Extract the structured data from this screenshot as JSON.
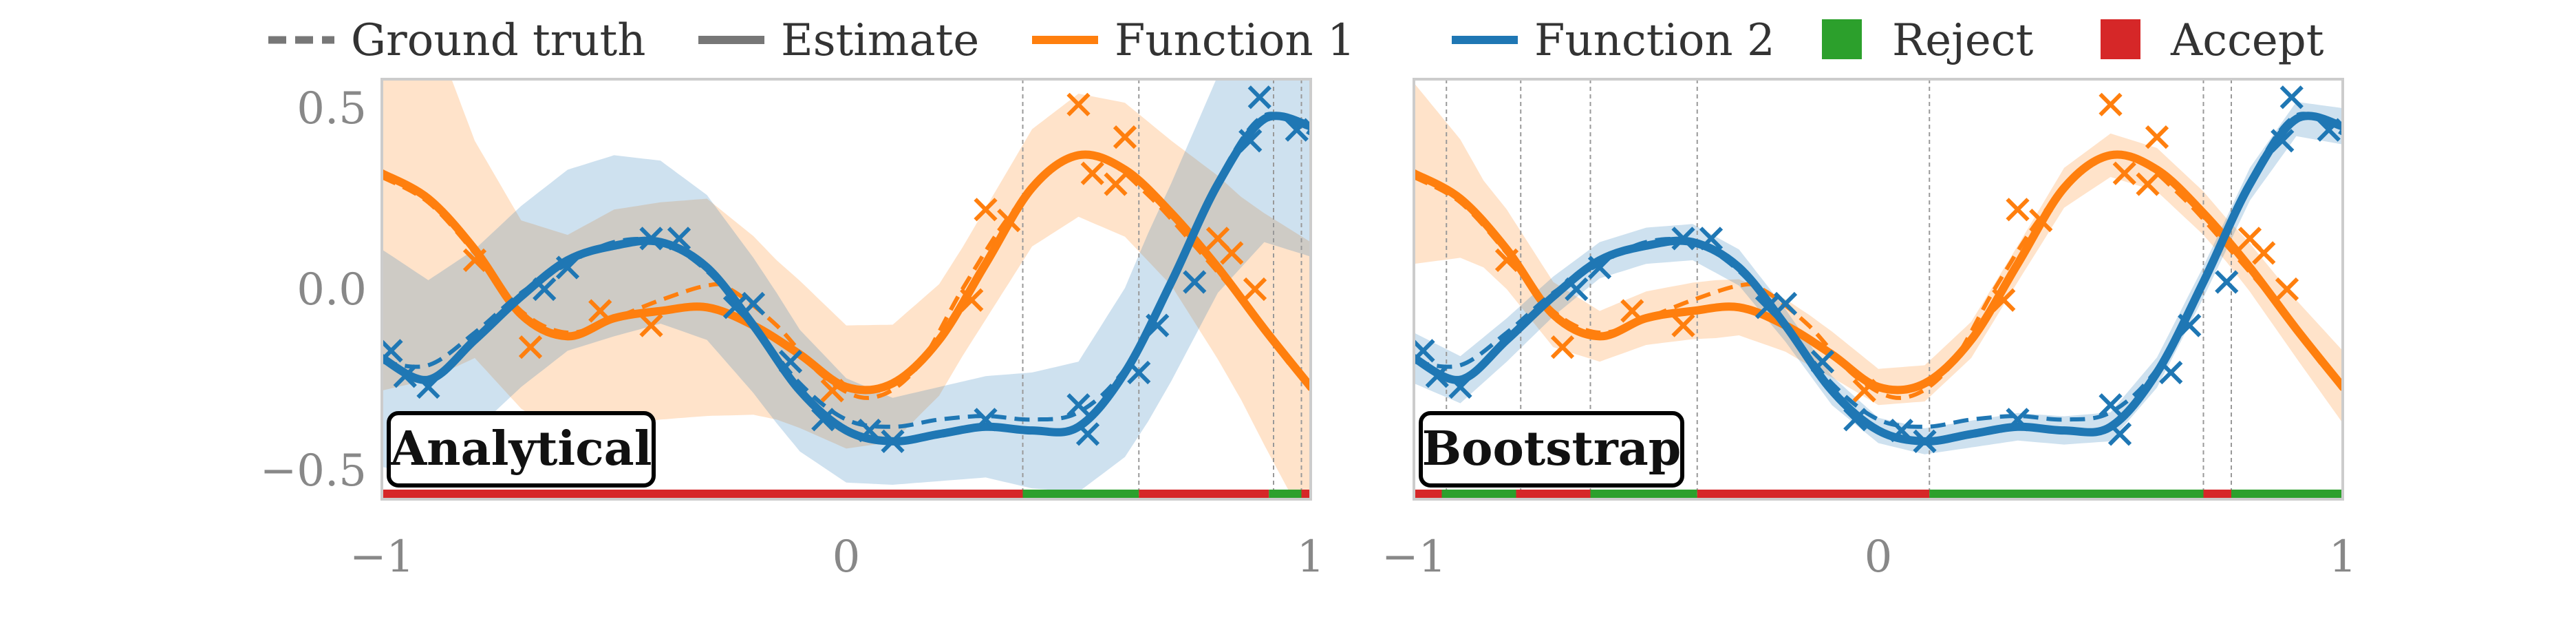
{
  "colors": {
    "function_1": "#ff7f0e",
    "function_2": "#1f77b4",
    "reject": "#2ca02c",
    "accept": "#d62728",
    "truth": "#777777",
    "axes": "#cccccc",
    "tick_text": "#888888"
  },
  "legend": {
    "items": [
      {
        "label": "Ground truth",
        "kind": "dashed-line",
        "color": "#777777"
      },
      {
        "label": "Estimate",
        "kind": "solid-line",
        "color": "#777777"
      },
      {
        "label": "Function 1",
        "kind": "solid-line",
        "color": "#ff7f0e"
      },
      {
        "label": "Function 2",
        "kind": "solid-line",
        "color": "#1f77b4"
      },
      {
        "label": "Reject",
        "kind": "square",
        "color": "#2ca02c"
      },
      {
        "label": "Accept",
        "kind": "square",
        "color": "#d62728"
      }
    ]
  },
  "chart_data": [
    {
      "type": "line",
      "panel_label": "Analytical",
      "xlim": [
        -1,
        1
      ],
      "ylim": [
        -0.58,
        0.58
      ],
      "x_ticks": [
        {
          "value": -1,
          "label": "−1"
        },
        {
          "value": 0,
          "label": "0"
        },
        {
          "value": 1,
          "label": "1"
        }
      ],
      "y_ticks": [
        {
          "value": 0.5,
          "label": "0.5"
        },
        {
          "value": 0.0,
          "label": "0.0"
        },
        {
          "value": -0.5,
          "label": "−0.5"
        }
      ],
      "grid": false,
      "band_width": {
        "f1": [
          [
            -1.0,
            0.6
          ],
          [
            -0.9,
            0.5
          ],
          [
            -0.8,
            0.3
          ],
          [
            -0.7,
            0.26
          ],
          [
            -0.5,
            0.3
          ],
          [
            -0.3,
            0.3
          ],
          [
            -0.15,
            0.22
          ],
          [
            0.0,
            0.17
          ],
          [
            0.25,
            0.15
          ],
          [
            0.5,
            0.17
          ],
          [
            0.7,
            0.2
          ],
          [
            0.85,
            0.28
          ],
          [
            1.0,
            0.4
          ]
        ],
        "f2": [
          [
            -1.0,
            0.3
          ],
          [
            -0.8,
            0.25
          ],
          [
            -0.5,
            0.25
          ],
          [
            -0.3,
            0.2
          ],
          [
            -0.15,
            0.18
          ],
          [
            0.1,
            0.12
          ],
          [
            0.3,
            0.14
          ],
          [
            0.5,
            0.18
          ],
          [
            0.65,
            0.26
          ],
          [
            0.8,
            0.3
          ],
          [
            0.9,
            0.34
          ],
          [
            1.0,
            0.36
          ]
        ]
      },
      "boundaries": [
        0.38,
        0.63,
        0.92,
        0.98
      ],
      "decision_strip": [
        {
          "from": -1.0,
          "to": 0.38,
          "decision": "Accept"
        },
        {
          "from": 0.38,
          "to": 0.63,
          "decision": "Reject"
        },
        {
          "from": 0.63,
          "to": 0.91,
          "decision": "Accept"
        },
        {
          "from": 0.91,
          "to": 0.98,
          "decision": "Reject"
        },
        {
          "from": 0.98,
          "to": 1.0,
          "decision": "Accept"
        }
      ]
    },
    {
      "type": "line",
      "panel_label": "Bootstrap",
      "xlim": [
        -1,
        1
      ],
      "ylim": [
        -0.58,
        0.58
      ],
      "x_ticks": [
        {
          "value": -1,
          "label": "−1"
        },
        {
          "value": 0,
          "label": "0"
        },
        {
          "value": 1,
          "label": "1"
        }
      ],
      "y_ticks": [],
      "grid": false,
      "band_width": {
        "f1": [
          [
            -1.0,
            0.25
          ],
          [
            -0.85,
            0.12
          ],
          [
            -0.6,
            0.07
          ],
          [
            -0.35,
            0.08
          ],
          [
            -0.15,
            0.07
          ],
          [
            0.0,
            0.05
          ],
          [
            0.3,
            0.05
          ],
          [
            0.5,
            0.06
          ],
          [
            0.75,
            0.06
          ],
          [
            0.9,
            0.08
          ],
          [
            1.0,
            0.1
          ]
        ],
        "f2": [
          [
            -1.0,
            0.07
          ],
          [
            -0.6,
            0.05
          ],
          [
            -0.3,
            0.05
          ],
          [
            0.0,
            0.035
          ],
          [
            0.5,
            0.04
          ],
          [
            0.8,
            0.045
          ],
          [
            1.0,
            0.05
          ]
        ]
      },
      "boundaries": [
        -0.93,
        -0.77,
        -0.62,
        -0.39,
        0.11,
        0.7,
        0.76
      ],
      "decision_strip": [
        {
          "from": -1.0,
          "to": -0.94,
          "decision": "Accept"
        },
        {
          "from": -0.94,
          "to": -0.78,
          "decision": "Reject"
        },
        {
          "from": -0.78,
          "to": -0.62,
          "decision": "Accept"
        },
        {
          "from": -0.62,
          "to": -0.39,
          "decision": "Reject"
        },
        {
          "from": -0.39,
          "to": 0.11,
          "decision": "Accept"
        },
        {
          "from": 0.11,
          "to": 0.7,
          "decision": "Reject"
        },
        {
          "from": 0.7,
          "to": 0.76,
          "decision": "Accept"
        },
        {
          "from": 0.76,
          "to": 1.0,
          "decision": "Reject"
        }
      ]
    }
  ],
  "shared_series": {
    "function_1": {
      "truth": [
        [
          -1.0,
          0.31
        ],
        [
          -0.9,
          0.24
        ],
        [
          -0.8,
          0.1
        ],
        [
          -0.7,
          -0.06
        ],
        [
          -0.6,
          -0.12
        ],
        [
          -0.5,
          -0.08
        ],
        [
          -0.4,
          -0.03
        ],
        [
          -0.3,
          0.01
        ],
        [
          -0.25,
          0.0
        ],
        [
          -0.15,
          -0.1
        ],
        [
          -0.05,
          -0.24
        ],
        [
          0.05,
          -0.3
        ],
        [
          0.15,
          -0.22
        ],
        [
          0.25,
          0.0
        ],
        [
          0.35,
          0.2
        ],
        [
          0.45,
          0.34
        ],
        [
          0.55,
          0.36
        ],
        [
          0.65,
          0.26
        ],
        [
          0.75,
          0.12
        ],
        [
          0.85,
          -0.03
        ],
        [
          0.95,
          -0.2
        ],
        [
          1.0,
          -0.27
        ]
      ],
      "estimate": [
        [
          -1.0,
          0.32
        ],
        [
          -0.9,
          0.25
        ],
        [
          -0.8,
          0.11
        ],
        [
          -0.7,
          -0.07
        ],
        [
          -0.6,
          -0.13
        ],
        [
          -0.5,
          -0.08
        ],
        [
          -0.4,
          -0.06
        ],
        [
          -0.3,
          -0.05
        ],
        [
          -0.2,
          -0.1
        ],
        [
          -0.1,
          -0.18
        ],
        [
          0.0,
          -0.27
        ],
        [
          0.1,
          -0.26
        ],
        [
          0.2,
          -0.14
        ],
        [
          0.3,
          0.07
        ],
        [
          0.4,
          0.28
        ],
        [
          0.5,
          0.37
        ],
        [
          0.6,
          0.33
        ],
        [
          0.7,
          0.21
        ],
        [
          0.8,
          0.06
        ],
        [
          0.9,
          -0.11
        ],
        [
          1.0,
          -0.27
        ]
      ],
      "observations": [
        [
          -0.8,
          0.08
        ],
        [
          -0.68,
          -0.16
        ],
        [
          -0.53,
          -0.06
        ],
        [
          -0.42,
          -0.1
        ],
        [
          -0.03,
          -0.28
        ],
        [
          0.27,
          -0.03
        ],
        [
          0.3,
          0.22
        ],
        [
          0.35,
          0.19
        ],
        [
          0.5,
          0.51
        ],
        [
          0.53,
          0.32
        ],
        [
          0.58,
          0.29
        ],
        [
          0.6,
          0.42
        ],
        [
          0.8,
          0.14
        ],
        [
          0.83,
          0.1
        ],
        [
          0.88,
          0.0
        ]
      ]
    },
    "function_2": {
      "truth": [
        [
          -1.0,
          -0.2
        ],
        [
          -0.9,
          -0.21
        ],
        [
          -0.8,
          -0.12
        ],
        [
          -0.7,
          -0.01
        ],
        [
          -0.6,
          0.07
        ],
        [
          -0.5,
          0.13
        ],
        [
          -0.4,
          0.13
        ],
        [
          -0.3,
          0.05
        ],
        [
          -0.2,
          -0.1
        ],
        [
          -0.1,
          -0.26
        ],
        [
          0.0,
          -0.36
        ],
        [
          0.1,
          -0.38
        ],
        [
          0.2,
          -0.36
        ],
        [
          0.3,
          -0.35
        ],
        [
          0.4,
          -0.36
        ],
        [
          0.5,
          -0.34
        ],
        [
          0.6,
          -0.22
        ],
        [
          0.7,
          0.02
        ],
        [
          0.8,
          0.3
        ],
        [
          0.9,
          0.48
        ],
        [
          1.0,
          0.43
        ]
      ],
      "estimate": [
        [
          -1.0,
          -0.19
        ],
        [
          -0.9,
          -0.25
        ],
        [
          -0.8,
          -0.14
        ],
        [
          -0.7,
          -0.02
        ],
        [
          -0.6,
          0.08
        ],
        [
          -0.5,
          0.12
        ],
        [
          -0.4,
          0.13
        ],
        [
          -0.3,
          0.06
        ],
        [
          -0.2,
          -0.1
        ],
        [
          -0.1,
          -0.28
        ],
        [
          0.0,
          -0.39
        ],
        [
          0.1,
          -0.42
        ],
        [
          0.2,
          -0.4
        ],
        [
          0.3,
          -0.38
        ],
        [
          0.4,
          -0.39
        ],
        [
          0.5,
          -0.38
        ],
        [
          0.6,
          -0.23
        ],
        [
          0.7,
          0.02
        ],
        [
          0.8,
          0.29
        ],
        [
          0.9,
          0.47
        ],
        [
          1.0,
          0.45
        ]
      ],
      "observations": [
        [
          -0.98,
          -0.17
        ],
        [
          -0.95,
          -0.24
        ],
        [
          -0.9,
          -0.27
        ],
        [
          -0.65,
          0.0
        ],
        [
          -0.6,
          0.06
        ],
        [
          -0.42,
          0.14
        ],
        [
          -0.36,
          0.14
        ],
        [
          -0.24,
          -0.05
        ],
        [
          -0.2,
          -0.04
        ],
        [
          -0.12,
          -0.2
        ],
        [
          -0.05,
          -0.36
        ],
        [
          0.05,
          -0.39
        ],
        [
          0.1,
          -0.42
        ],
        [
          0.3,
          -0.36
        ],
        [
          0.5,
          -0.32
        ],
        [
          0.52,
          -0.4
        ],
        [
          0.63,
          -0.23
        ],
        [
          0.67,
          -0.1
        ],
        [
          0.75,
          0.02
        ],
        [
          0.87,
          0.41
        ],
        [
          0.89,
          0.53
        ],
        [
          0.97,
          0.44
        ]
      ]
    }
  }
}
